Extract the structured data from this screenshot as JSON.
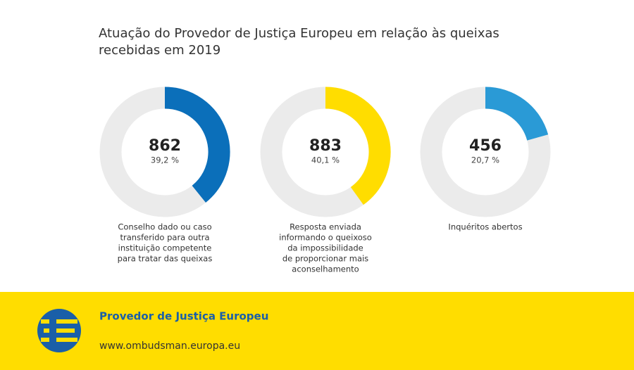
{
  "title": [
    "Atuação do Provedor de Justiça Europeu em relação às queixas",
    "recebidas em 2019"
  ],
  "chart_data": [
    {
      "type": "donut",
      "count": 862,
      "values": [
        39.2
      ],
      "value_labels": [
        "39,2 %"
      ],
      "color": "#0b6fba",
      "caption": [
        "Conselho dado ou caso",
        "transferido para outra",
        "instituição competente",
        "para tratar das queixas"
      ]
    },
    {
      "type": "donut",
      "count": 883,
      "values": [
        40.1
      ],
      "value_labels": [
        "40,1 %"
      ],
      "color": "#ffdd00",
      "caption": [
        "Resposta enviada",
        "informando o queixoso",
        "da impossibilidade",
        "de proporcionar mais",
        "aconselhamento"
      ]
    },
    {
      "type": "donut",
      "count": 456,
      "values": [
        20.7
      ],
      "value_labels": [
        "20,7 %"
      ],
      "color": "#2a9ad6",
      "caption": [
        "Inquéritos abertos"
      ]
    }
  ],
  "footer": {
    "name": "Provedor de Justiça Europeu",
    "url": "www.ombudsman.europa.eu"
  }
}
